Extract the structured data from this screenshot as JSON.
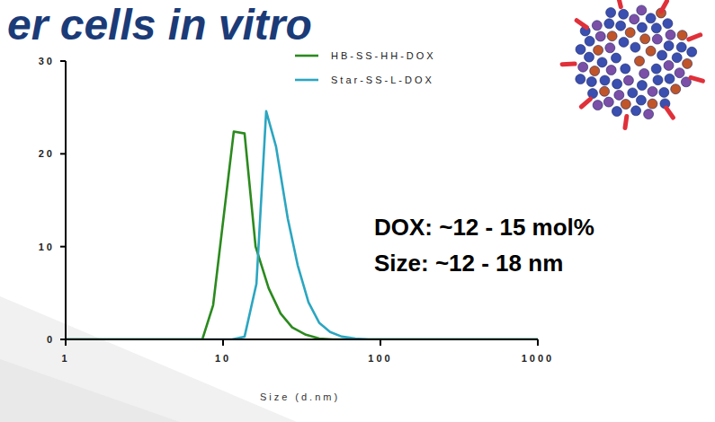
{
  "chart_data": {
    "type": "line",
    "title": "er cells in vitro",
    "x_label": "Size (d.nm)",
    "log": "x",
    "xlim": [
      1,
      1000
    ],
    "xticks": [
      1,
      10,
      100,
      1000
    ],
    "ylim": [
      0,
      30
    ],
    "yticks": [
      0,
      10,
      20,
      30
    ],
    "legend": "top",
    "annotations": [
      "DOX: ~12 - 15 mol%",
      "Size: ~12 - 18 nm"
    ],
    "series": [
      {
        "name": "HB-SS-HH-DOX",
        "color": "#2b8a1e",
        "x": [
          1,
          7.39,
          8.65,
          11.7,
          13.7,
          16.1,
          19.5,
          23.2,
          27.5,
          33.6,
          40.8,
          49.8,
          1000
        ],
        "values": [
          0,
          0,
          3.7,
          22.4,
          22.2,
          10,
          5.5,
          2.8,
          1.3,
          0.5,
          0.1,
          0,
          0
        ]
      },
      {
        "name": "Star-SS-L-DOX",
        "color": "#2ba6c1",
        "x": [
          1,
          11.4,
          13.7,
          16.3,
          18.8,
          21.7,
          25.8,
          29.8,
          34.9,
          40.8,
          47.9,
          56.8,
          69.2,
          84.3,
          1000
        ],
        "values": [
          0,
          0,
          0.3,
          6,
          24.6,
          20.8,
          13,
          8,
          4,
          1.8,
          0.8,
          0.3,
          0.1,
          0,
          0
        ]
      }
    ]
  }
}
